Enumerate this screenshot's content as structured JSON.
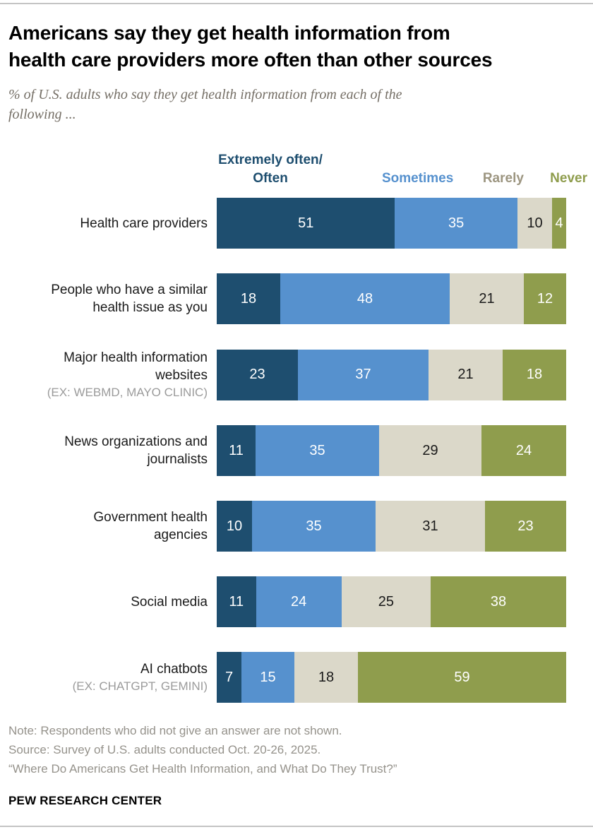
{
  "header": {
    "title_line1": "Americans say they get health information from",
    "title_line2": "health care providers more often than other sources",
    "subtitle_line1": "% of U.S. adults who say they get health information from each of the",
    "subtitle_line2": "following ..."
  },
  "legend": {
    "often_line1": "Extremely often/",
    "often_line2": "Often",
    "sometimes": "Sometimes",
    "rarely": "Rarely",
    "never": "Never"
  },
  "colors": {
    "often": "#1E4E6F",
    "sometimes": "#5691CE",
    "rarely_fill": "#DBD8C9",
    "never": "#8F9D4D",
    "rarely_label": "#9C9580"
  },
  "chart_data": {
    "type": "bar",
    "stacked": true,
    "orientation": "horizontal",
    "title": "Americans say they get health information from health care providers more often than other sources",
    "subtitle": "% of U.S. adults who say they get health information from each of the following ...",
    "xlim": [
      0,
      100
    ],
    "legend_position": "top",
    "grid": false,
    "categories": [
      {
        "label": "Health care providers",
        "sublabel": ""
      },
      {
        "label": "People who have a similar health issue as you",
        "sublabel": ""
      },
      {
        "label": "Major health information websites",
        "sublabel": "(EX: WEBMD, MAYO CLINIC)"
      },
      {
        "label": "News organizations and journalists",
        "sublabel": ""
      },
      {
        "label": "Government health agencies",
        "sublabel": ""
      },
      {
        "label": "Social media",
        "sublabel": ""
      },
      {
        "label": "AI chatbots",
        "sublabel": "(EX: CHATGPT, GEMINI)"
      }
    ],
    "series": [
      {
        "name": "Extremely often/Often",
        "color": "#1E4E6F",
        "text_color": "#ffffff",
        "values": [
          51,
          18,
          23,
          11,
          10,
          11,
          7
        ]
      },
      {
        "name": "Sometimes",
        "color": "#5691CE",
        "text_color": "#ffffff",
        "values": [
          35,
          48,
          37,
          35,
          35,
          24,
          15
        ]
      },
      {
        "name": "Rarely",
        "color": "#DBD8C9",
        "text_color": "#1a1a1a",
        "values": [
          10,
          21,
          21,
          29,
          31,
          25,
          18
        ]
      },
      {
        "name": "Never",
        "color": "#8F9D4D",
        "text_color": "#ffffff",
        "values": [
          4,
          12,
          18,
          24,
          23,
          38,
          59
        ]
      }
    ]
  },
  "footer": {
    "note": "Note: Respondents who did not give an answer are not shown.",
    "source": "Source: Survey of U.S. adults conducted Oct. 20-26, 2025.",
    "report_title": "“Where Do Americans Get Health Information, and What Do They Trust?”",
    "brand": "PEW RESEARCH CENTER"
  }
}
